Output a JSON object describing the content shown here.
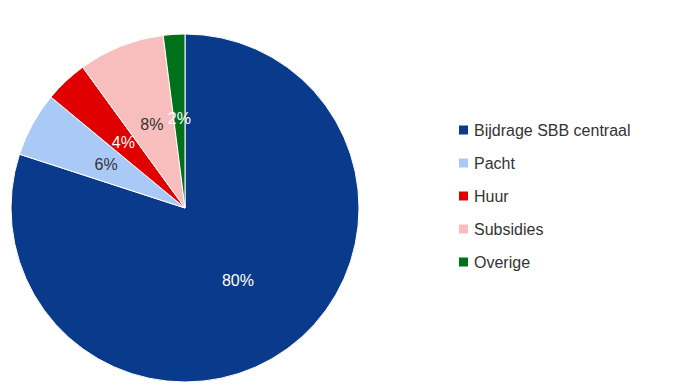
{
  "chart_data": {
    "type": "pie",
    "categories": [
      "Bijdrage SBB centraal",
      "Pacht",
      "Huur",
      "Subsidies",
      "Overige"
    ],
    "values": [
      80,
      6,
      4,
      8,
      2
    ],
    "value_labels": [
      "80%",
      "6%",
      "4%",
      "8%",
      "2%"
    ],
    "colors": [
      "#0a3a8c",
      "#a9c9f7",
      "#e00000",
      "#f8bdbd",
      "#00701a"
    ],
    "data_labels": true,
    "legend": "right"
  }
}
